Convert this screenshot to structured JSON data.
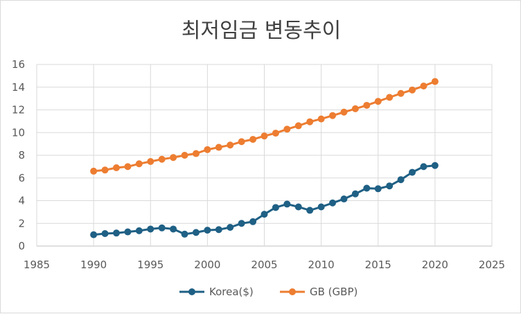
{
  "chart_data": {
    "type": "line",
    "title": "최저임금 변동추이",
    "xlabel": "",
    "ylabel": "",
    "xlim": [
      1985,
      2025
    ],
    "ylim": [
      0,
      16
    ],
    "x_ticks": [
      1985,
      1990,
      1995,
      2000,
      2005,
      2010,
      2015,
      2020,
      2025
    ],
    "y_ticks": [
      0,
      2,
      4,
      6,
      8,
      10,
      12,
      14,
      16
    ],
    "grid": true,
    "legend_position": "bottom",
    "series": [
      {
        "name": "Korea($)",
        "color": "#1f6085",
        "x": [
          1990,
          1991,
          1992,
          1993,
          1994,
          1995,
          1996,
          1997,
          1998,
          1999,
          2000,
          2001,
          2002,
          2003,
          2004,
          2005,
          2006,
          2007,
          2008,
          2009,
          2010,
          2011,
          2012,
          2013,
          2014,
          2015,
          2016,
          2017,
          2018,
          2019,
          2020
        ],
        "values": [
          1.0,
          1.1,
          1.15,
          1.25,
          1.35,
          1.5,
          1.6,
          1.5,
          1.05,
          1.2,
          1.4,
          1.45,
          1.65,
          2.0,
          2.15,
          2.8,
          3.4,
          3.7,
          3.45,
          3.15,
          3.45,
          3.8,
          4.15,
          4.6,
          5.1,
          5.05,
          5.3,
          5.85,
          6.5,
          7.0,
          7.1
        ]
      },
      {
        "name": "GB (GBP)",
        "color": "#ed7d31",
        "x": [
          1990,
          1991,
          1992,
          1993,
          1994,
          1995,
          1996,
          1997,
          1998,
          1999,
          2000,
          2001,
          2002,
          2003,
          2004,
          2005,
          2006,
          2007,
          2008,
          2009,
          2010,
          2011,
          2012,
          2013,
          2014,
          2015,
          2016,
          2017,
          2018,
          2019,
          2020
        ],
        "values": [
          6.6,
          6.7,
          6.9,
          7.0,
          7.25,
          7.45,
          7.65,
          7.8,
          8.0,
          8.15,
          8.5,
          8.7,
          8.9,
          9.2,
          9.4,
          9.7,
          9.95,
          10.3,
          10.6,
          10.95,
          11.2,
          11.5,
          11.8,
          12.1,
          12.4,
          12.75,
          13.1,
          13.45,
          13.75,
          14.1,
          14.5
        ]
      }
    ]
  }
}
